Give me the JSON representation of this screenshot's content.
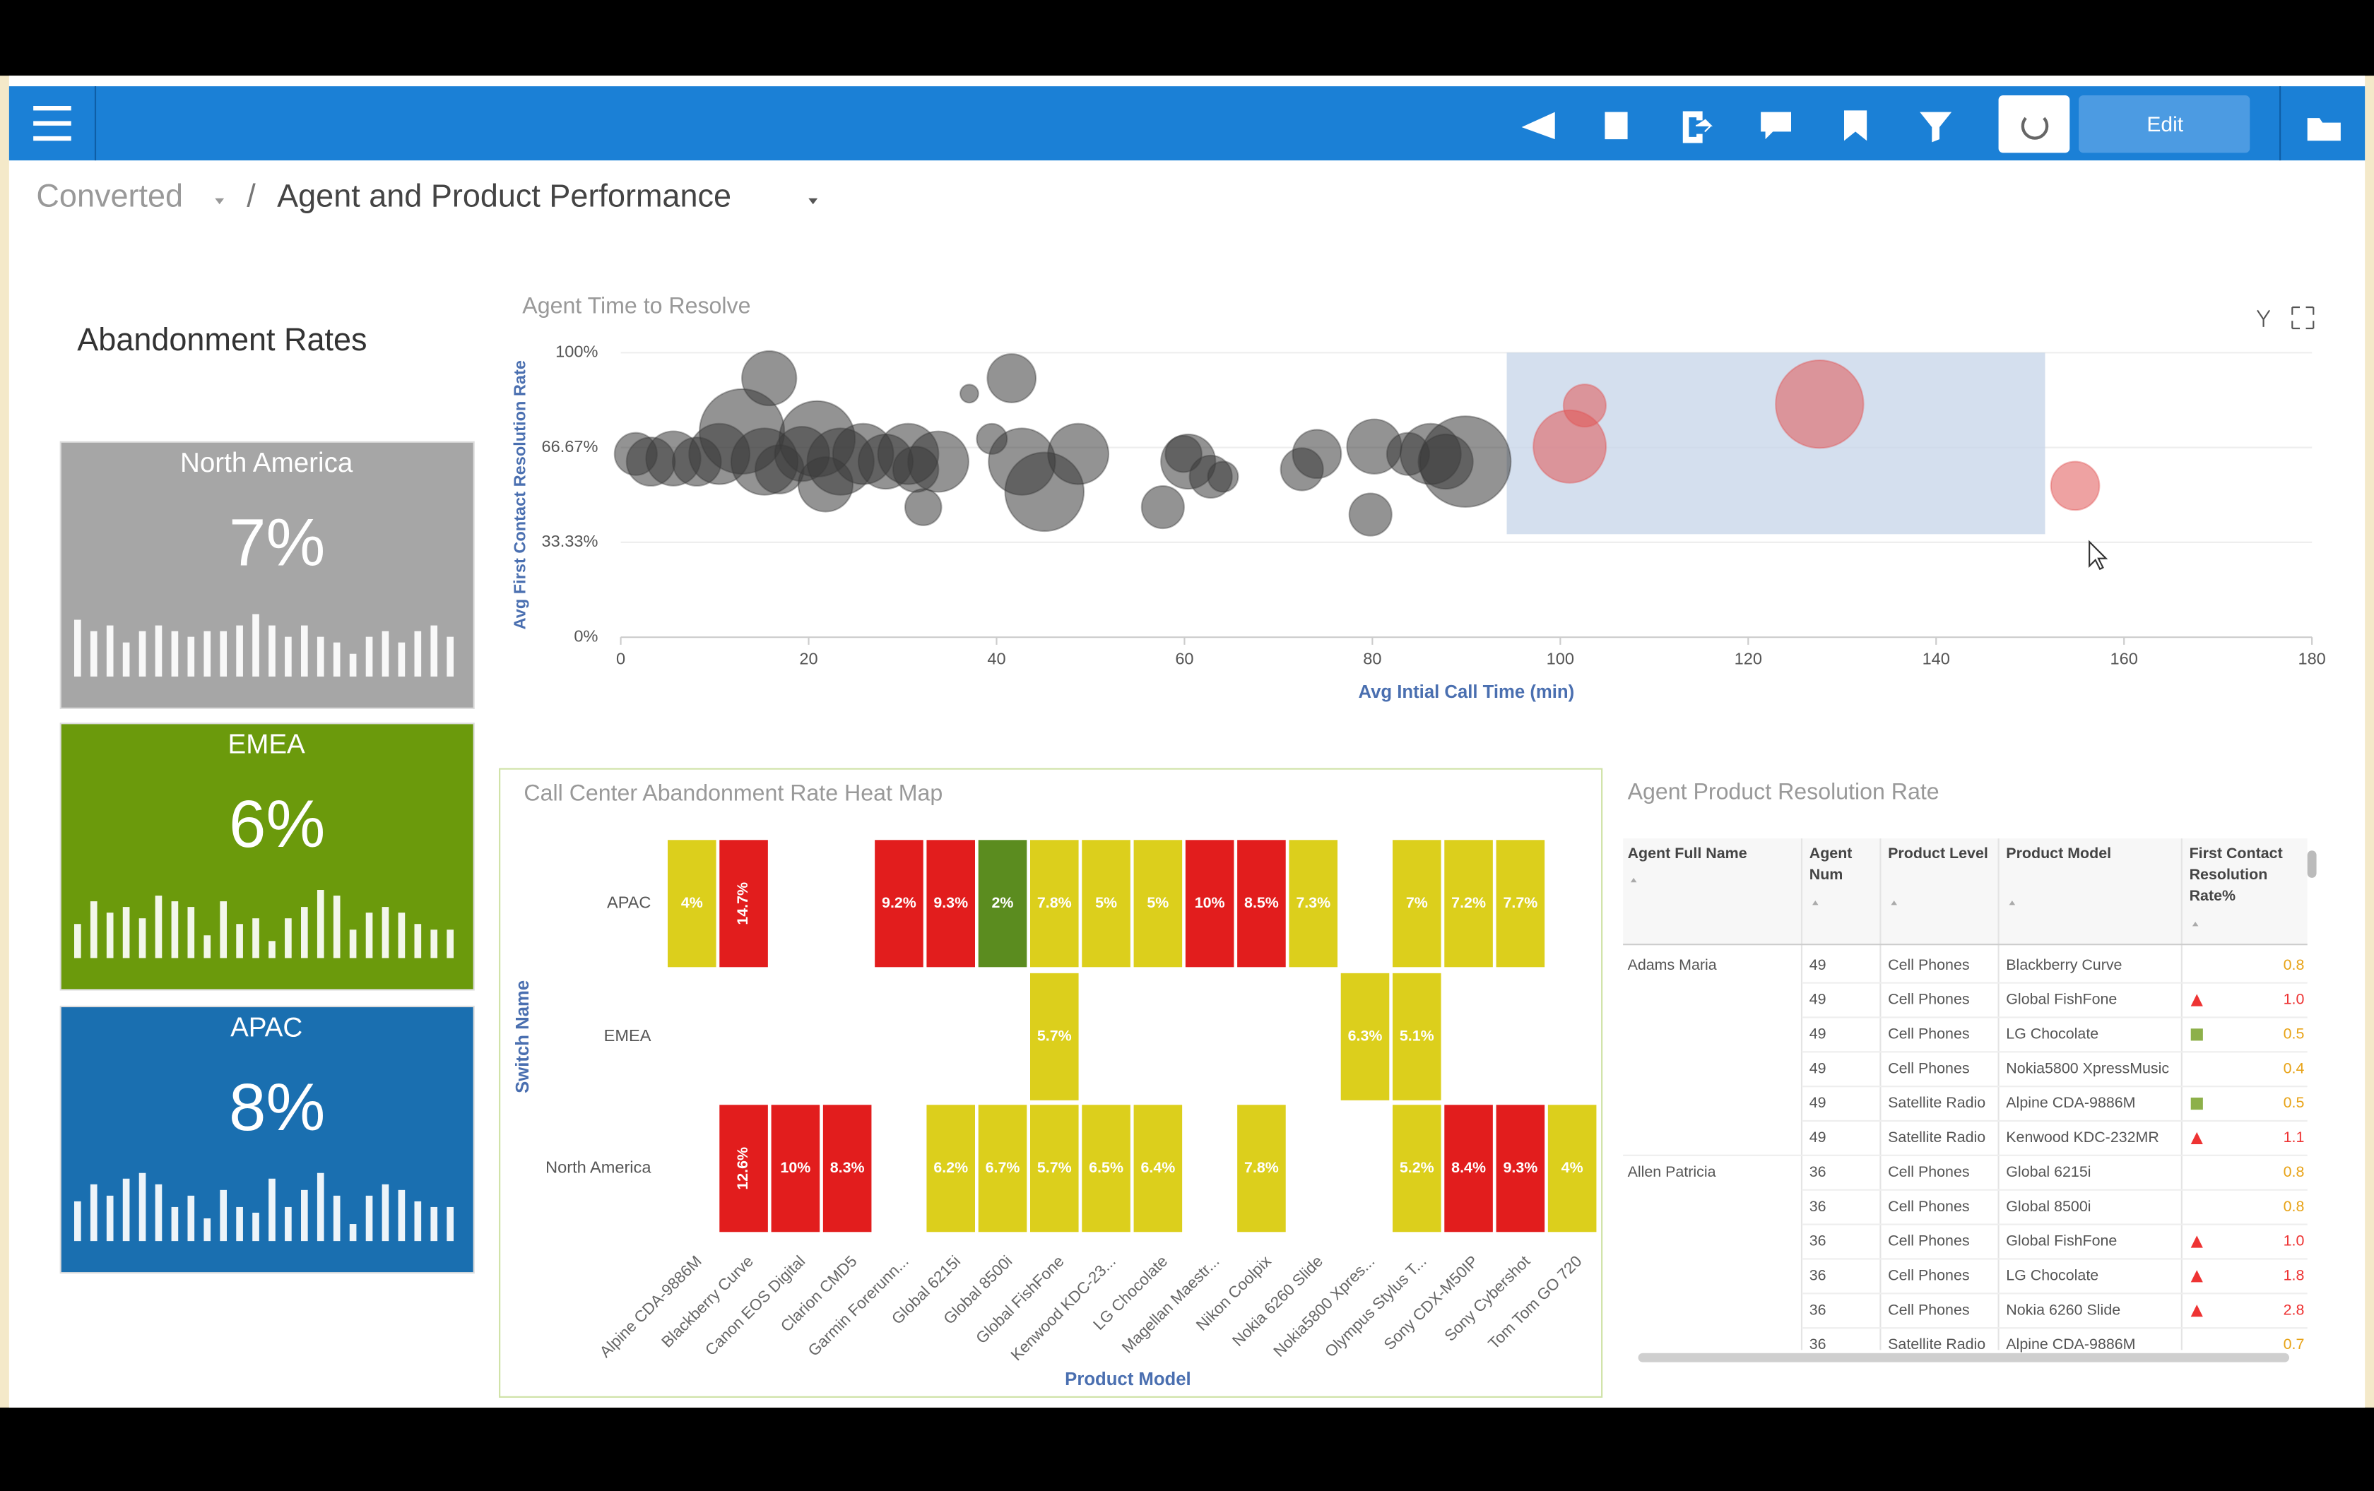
{
  "toolbar": {
    "button": "Edit"
  },
  "breadcrumb": {
    "items": [
      "Converted",
      "Agent and Product Performance"
    ],
    "separator": "/"
  },
  "kpi_panel": {
    "title": "Abandonment Rates",
    "cards": [
      {
        "name": "North America",
        "value": "7%",
        "color": "#a6a6a6",
        "spark": [
          10,
          8,
          9,
          6,
          8,
          9,
          8,
          7,
          8,
          8,
          9,
          11,
          9,
          7,
          9,
          7,
          6,
          4,
          7,
          8,
          6,
          8,
          9,
          7
        ]
      },
      {
        "name": "EMEA",
        "value": "6%",
        "color": "#6b9a0c",
        "spark": [
          6,
          10,
          8,
          9,
          7,
          11,
          10,
          9,
          4,
          10,
          6,
          7,
          3,
          7,
          9,
          12,
          11,
          5,
          8,
          9,
          8,
          6,
          5,
          5
        ]
      },
      {
        "name": "APAC",
        "value": "8%",
        "color": "#1a6fb0",
        "spark": [
          7,
          10,
          8,
          11,
          12,
          10,
          6,
          8,
          4,
          9,
          6,
          5,
          11,
          6,
          9,
          12,
          8,
          3,
          8,
          10,
          9,
          7,
          6,
          6
        ]
      }
    ]
  },
  "chart_data": [
    {
      "type": "bubble",
      "title": "Agent Time to Resolve",
      "x_label": "Avg Intial Call Time (min)",
      "y_label": "Avg First Contact Resolution Rate",
      "xlim": [
        0,
        180
      ],
      "xticks": [
        0,
        20,
        40,
        60,
        80,
        100,
        120,
        140,
        160,
        180
      ],
      "ylim": [
        0,
        100
      ],
      "yticks": [
        {
          "value": 0,
          "label": "0%"
        },
        {
          "value": 33.33,
          "label": "33.33%"
        },
        {
          "value": 66.67,
          "label": "66.67%"
        },
        {
          "value": 100,
          "label": "100%"
        }
      ],
      "grid": true,
      "selection": {
        "xlim": [
          94.3,
          151.6
        ],
        "ylim": [
          36.2,
          100
        ]
      },
      "series": [
        {
          "color": "#3a3a3a",
          "x": [
            1.6,
            3.2,
            5.6,
            8.1,
            10.5,
            12.9,
            15.3,
            15.8,
            16.9,
            19.3,
            20.9,
            21.8,
            23.4,
            25.8,
            28.2,
            30.6,
            32.2,
            33.8,
            31.4,
            37.1,
            39.5,
            41.6,
            42.7,
            45.1,
            48.7,
            57.7,
            59.9,
            60.4,
            62.8,
            64.1,
            72.5,
            74.1,
            79.8,
            80.2,
            83.8,
            86.2,
            87.8,
            89.9
          ],
          "values": [
            64.4,
            61.7,
            62.8,
            61.7,
            64.4,
            72.3,
            61.7,
            91.0,
            59.0,
            64.4,
            69.7,
            53.7,
            61.7,
            64.4,
            61.7,
            64.4,
            45.7,
            61.7,
            59.0,
            85.6,
            69.7,
            91.0,
            61.7,
            51.1,
            64.4,
            45.7,
            64.4,
            61.7,
            56.4,
            56.4,
            59.0,
            64.4,
            43.1,
            67.0,
            64.4,
            64.4,
            61.7,
            61.7
          ],
          "sizes": [
            14,
            16,
            18,
            16,
            20,
            28,
            22,
            18,
            16,
            18,
            25,
            18,
            22,
            20,
            18,
            20,
            12,
            20,
            15,
            6,
            10,
            16,
            22,
            26,
            20,
            14,
            12,
            18,
            14,
            10,
            14,
            16,
            14,
            18,
            14,
            20,
            18,
            30
          ]
        },
        {
          "color": "#e05555",
          "x": [
            101.0,
            102.6,
            127.6,
            154.8
          ],
          "values": [
            67.0,
            81.4,
            81.9,
            53.2
          ],
          "sizes": [
            24,
            14,
            29,
            16
          ]
        }
      ]
    },
    {
      "type": "heatmap",
      "title": "Call Center Abandonment Rate Heat Map",
      "x_label": "Product Model",
      "y_label": "Switch Name",
      "categories": [
        "Alpine CDA-9886M",
        "Blackberry Curve",
        "Canon EOS Digital",
        "Clarion CMD5",
        "Garmin Forerunn...",
        "Global 6215i",
        "Global 8500i",
        "Global FishFone",
        "Kenwood KDC-23...",
        "LG Chocolate",
        "Magellan Maestr...",
        "Nikon Coolpix",
        "Nokia 6260 Slide",
        "Nokia5800 Xpres...",
        "Olympus Stylus T...",
        "Sony CDX-M50IP",
        "Sony Cybershot",
        "Tom Tom GO 720"
      ],
      "rows": [
        "APAC",
        "EMEA",
        "North America"
      ],
      "colors": {
        "low": "#5b8c1f",
        "mid": "#dccf1c",
        "high": "#e21d1d"
      },
      "values": [
        [
          4,
          14.7,
          null,
          null,
          9.2,
          9.3,
          2,
          7.8,
          5,
          5,
          10,
          8.5,
          7.3,
          null,
          7,
          7.2,
          7.7,
          null
        ],
        [
          null,
          null,
          null,
          null,
          null,
          null,
          null,
          5.7,
          null,
          null,
          null,
          null,
          null,
          6.3,
          5.1,
          null,
          null,
          null
        ],
        [
          null,
          12.6,
          10,
          8.3,
          null,
          6.2,
          6.7,
          5.7,
          6.5,
          6.4,
          null,
          7.8,
          null,
          null,
          5.2,
          8.4,
          9.3,
          4
        ]
      ],
      "value_labels": [
        [
          "4%",
          "14.7%",
          null,
          null,
          "9.2%",
          "9.3%",
          "2%",
          "7.8%",
          "5%",
          "5%",
          "10%",
          "8.5%",
          "7.3%",
          null,
          "7%",
          "7.2%",
          "7.7%",
          null
        ],
        [
          null,
          null,
          null,
          null,
          null,
          null,
          null,
          "5.7%",
          null,
          null,
          null,
          null,
          null,
          "6.3%",
          "5.1%",
          null,
          null,
          null
        ],
        [
          null,
          "12.6%",
          "10%",
          "8.3%",
          null,
          "6.2%",
          "6.7%",
          "5.7%",
          "6.5%",
          "6.4%",
          null,
          "7.8%",
          null,
          null,
          "5.2%",
          "8.4%",
          "9.3%",
          "4%"
        ]
      ]
    }
  ],
  "table": {
    "title": "Agent Product Resolution Rate",
    "columns": [
      "Agent Full Name",
      "Agent Num",
      "Product Level",
      "Product Model",
      "First Contact Resolution Rate%"
    ],
    "rows": [
      [
        "Adams Maria",
        "49",
        "Cell Phones",
        "Blackberry Curve",
        "0.8"
      ],
      [
        null,
        "49",
        "Cell Phones",
        "Global FishFone",
        "1.0"
      ],
      [
        null,
        "49",
        "Cell Phones",
        "LG Chocolate",
        "0.5"
      ],
      [
        null,
        "49",
        "Cell Phones",
        "Nokia5800 XpressMusic",
        "0.4"
      ],
      [
        null,
        "49",
        "Satellite Radio",
        "Alpine CDA-9886M",
        "0.5"
      ],
      [
        null,
        "49",
        "Satellite Radio",
        "Kenwood KDC-232MR",
        "1.1"
      ],
      [
        "Allen Patricia",
        "36",
        "Cell Phones",
        "Global 6215i",
        "0.8"
      ],
      [
        null,
        "36",
        "Cell Phones",
        "Global 8500i",
        "0.8"
      ],
      [
        null,
        "36",
        "Cell Phones",
        "Global FishFone",
        "1.0"
      ],
      [
        null,
        "36",
        "Cell Phones",
        "LG Chocolate",
        "1.8"
      ],
      [
        null,
        "36",
        "Cell Phones",
        "Nokia 6260 Slide",
        "2.8"
      ],
      [
        null,
        "36",
        "Satellite Radio",
        "Alpine CDA-9886M",
        "0.7"
      ]
    ]
  }
}
